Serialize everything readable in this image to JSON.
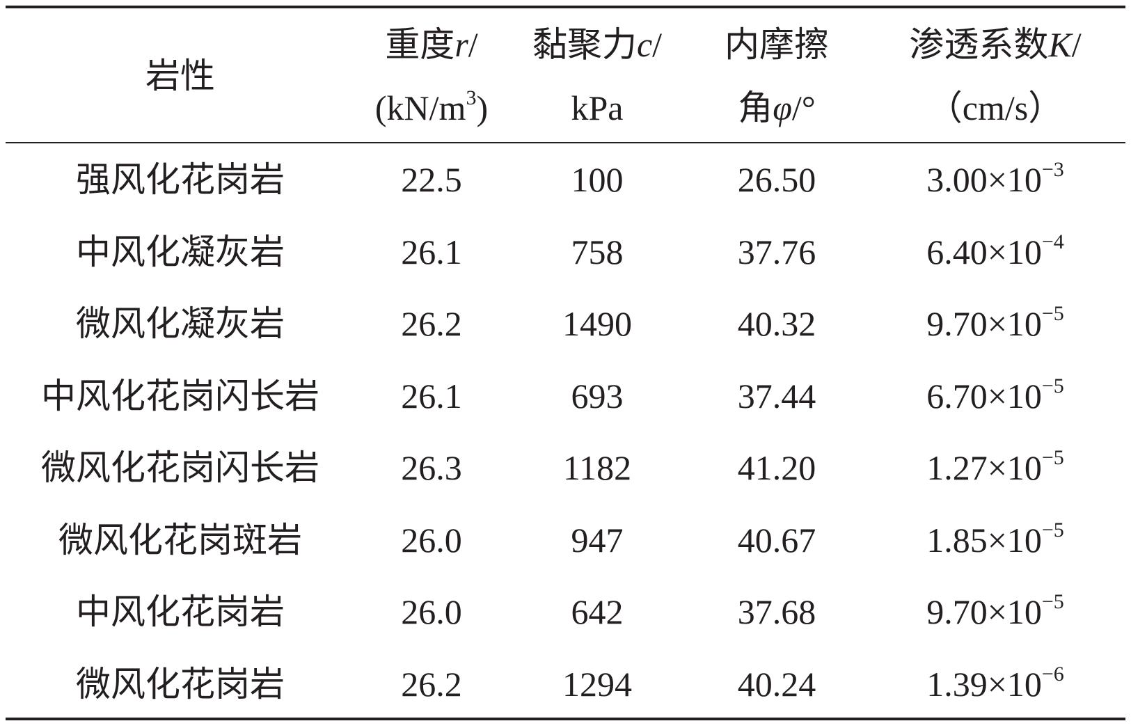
{
  "header": [
    [
      [
        "岩性"
      ]
    ],
    [
      [
        "重度",
        "r",
        "/"
      ],
      [
        "(kN/m",
        "3",
        ")"
      ]
    ],
    [
      [
        "黏聚力",
        "c",
        "/"
      ],
      [
        "kPa"
      ]
    ],
    [
      [
        "内摩擦"
      ],
      [
        "角",
        "φ",
        "/°"
      ]
    ],
    [
      [
        "渗透系数",
        "K",
        "/"
      ],
      [
        "（cm/s）"
      ]
    ]
  ],
  "rows": [
    [
      "强风化花岗岩",
      "22.5",
      "100",
      "26.50",
      {
        "base": "3.00×10",
        "exp": "−3"
      }
    ],
    [
      "中风化凝灰岩",
      "26.1",
      "758",
      "37.76",
      {
        "base": "6.40×10",
        "exp": "−4"
      }
    ],
    [
      "微风化凝灰岩",
      "26.2",
      "1490",
      "40.32",
      {
        "base": "9.70×10",
        "exp": "−5"
      }
    ],
    [
      "中风化花岗闪长岩",
      "26.1",
      "693",
      "37.44",
      {
        "base": "6.70×10",
        "exp": "−5"
      }
    ],
    [
      "微风化花岗闪长岩",
      "26.3",
      "1182",
      "41.20",
      {
        "base": "1.27×10",
        "exp": "−5"
      }
    ],
    [
      "微风化花岗斑岩",
      "26.0",
      "947",
      "40.67",
      {
        "base": "1.85×10",
        "exp": "−5"
      }
    ],
    [
      "中风化花岗岩",
      "26.0",
      "642",
      "37.68",
      {
        "base": "9.70×10",
        "exp": "−5"
      }
    ],
    [
      "微风化花岗岩",
      "26.2",
      "1294",
      "40.24",
      {
        "base": "1.39×10",
        "exp": "−6"
      }
    ]
  ]
}
